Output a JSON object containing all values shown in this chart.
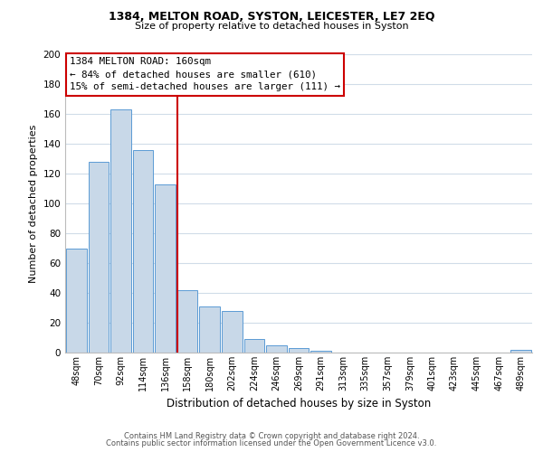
{
  "title1": "1384, MELTON ROAD, SYSTON, LEICESTER, LE7 2EQ",
  "title2": "Size of property relative to detached houses in Syston",
  "xlabel": "Distribution of detached houses by size in Syston",
  "ylabel": "Number of detached properties",
  "bar_labels": [
    "48sqm",
    "70sqm",
    "92sqm",
    "114sqm",
    "136sqm",
    "158sqm",
    "180sqm",
    "202sqm",
    "224sqm",
    "246sqm",
    "269sqm",
    "291sqm",
    "313sqm",
    "335sqm",
    "357sqm",
    "379sqm",
    "401sqm",
    "423sqm",
    "445sqm",
    "467sqm",
    "489sqm"
  ],
  "bar_values": [
    70,
    128,
    163,
    136,
    113,
    42,
    31,
    28,
    9,
    5,
    3,
    1,
    0,
    0,
    0,
    0,
    0,
    0,
    0,
    0,
    2
  ],
  "bar_color": "#c8d8e8",
  "bar_edge_color": "#5b9bd5",
  "vline_color": "#cc0000",
  "annotation_title": "1384 MELTON ROAD: 160sqm",
  "annotation_line1": "← 84% of detached houses are smaller (610)",
  "annotation_line2": "15% of semi-detached houses are larger (111) →",
  "annotation_box_color": "#ffffff",
  "annotation_box_edge": "#cc0000",
  "ylim": [
    0,
    200
  ],
  "yticks": [
    0,
    20,
    40,
    60,
    80,
    100,
    120,
    140,
    160,
    180,
    200
  ],
  "footer1": "Contains HM Land Registry data © Crown copyright and database right 2024.",
  "footer2": "Contains public sector information licensed under the Open Government Licence v3.0.",
  "bg_color": "#ffffff",
  "grid_color": "#d0dce8"
}
